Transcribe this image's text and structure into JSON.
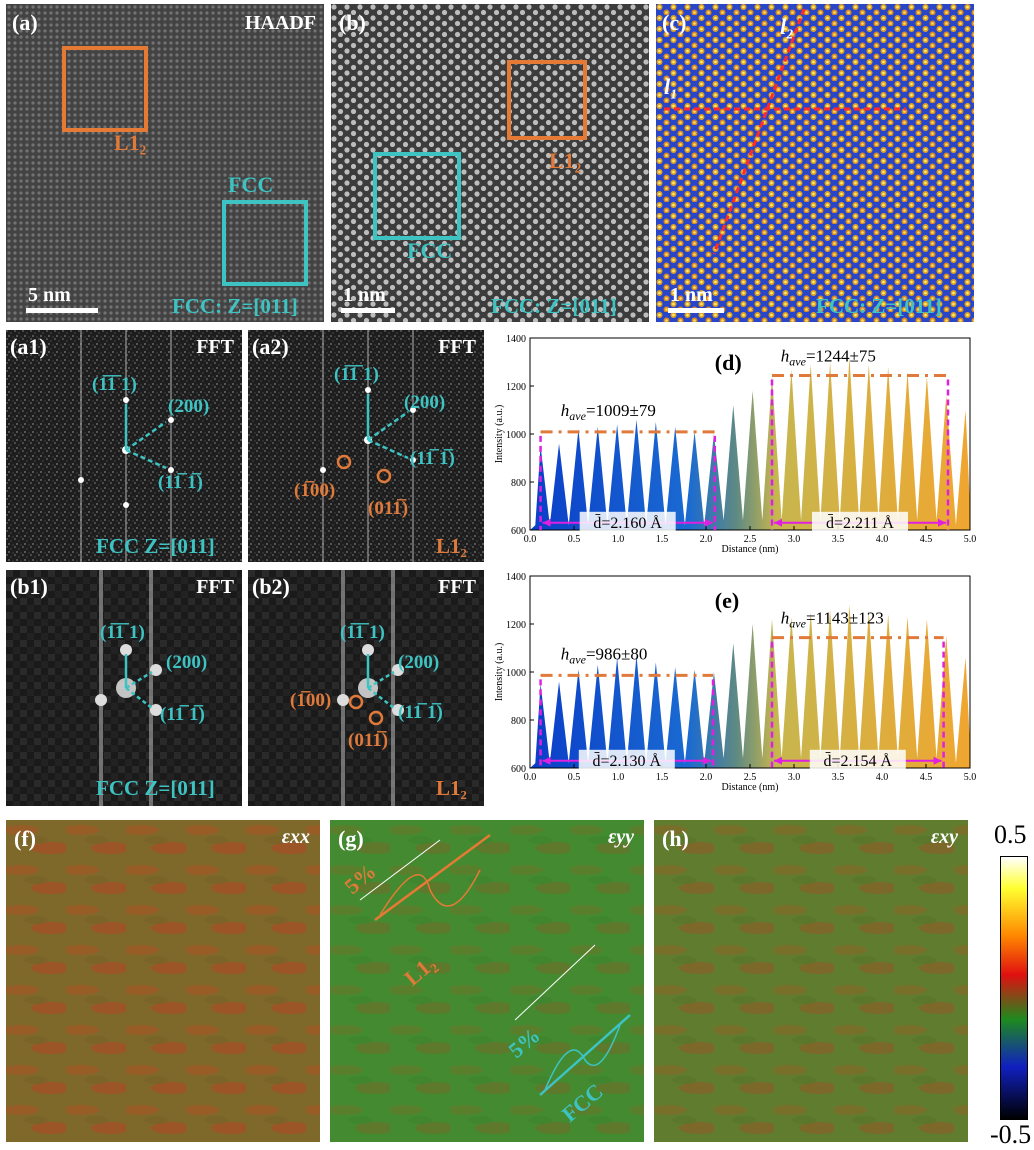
{
  "panels": {
    "a": {
      "label": "(a)",
      "mode": "HAADF",
      "scale": "5 nm",
      "box1": "L1₂",
      "box2": "FCC",
      "zone": "FCC: Z=[011]"
    },
    "b": {
      "label": "(b)",
      "scale": "1 nm",
      "box1": "L1₂",
      "box2": "FCC",
      "zone": "FCC: Z=[011]"
    },
    "c": {
      "label": "(c)",
      "scale": "1 nm",
      "zone": "FCC: Z=[011]",
      "line1": "l₁",
      "line2": "l₂"
    },
    "a1": {
      "label": "(a1)",
      "mode": "FFT",
      "p1": "(1̅1̅ 1)",
      "p2": "(200)",
      "p3": "(11̅ 1̅)",
      "zone": "FCC Z=[011]"
    },
    "a2": {
      "label": "(a2)",
      "mode": "FFT",
      "p1": "(1̅1̅ 1)",
      "p2": "(200)",
      "p3": "(11̅ 1̅)",
      "p4": "(1̅00)",
      "p5": "(011̅)",
      "phase": "L1₂"
    },
    "b1": {
      "label": "(b1)",
      "mode": "FFT",
      "p1": "(1̅1̅ 1)",
      "p2": "(200)",
      "p3": "(11̅ 1̅)",
      "zone": "FCC Z=[011]"
    },
    "b2": {
      "label": "(b2)",
      "mode": "FFT",
      "p1": "(1̅1̅ 1)",
      "p2": "(200)",
      "p3": "(11̅ 1̅)",
      "p4": "(1̅00)",
      "p5": "(011̅)",
      "phase": "L1₂"
    },
    "f": {
      "label": "(f)",
      "strain": "εxx"
    },
    "g": {
      "label": "(g)",
      "strain": "εyy",
      "pct1": "5%",
      "pct2": "5%",
      "phase1": "L1₂",
      "phase2": "FCC"
    },
    "h": {
      "label": "(h)",
      "strain": "εxy"
    }
  },
  "colorbar": {
    "max": "0.5",
    "min": "-0.5"
  },
  "chart_data": [
    {
      "type": "area",
      "panel": "(d)",
      "xlabel": "Distance (nm)",
      "ylabel": "Intensity (a.u.)",
      "xlim": [
        0,
        5.0
      ],
      "ylim": [
        600,
        1400
      ],
      "xticks": [
        "0.0",
        "0.5",
        "1.0",
        "1.5",
        "2.0",
        "2.5",
        "3.0",
        "3.5",
        "4.0",
        "4.5",
        "5.0"
      ],
      "yticks": [
        "600",
        "800",
        "1000",
        "1200",
        "1400"
      ],
      "annotations": {
        "h1": "h",
        "h1_sub": "ave",
        "h1_val": "=1009±79",
        "h2": "h",
        "h2_sub": "ave",
        "h2_val": "=1244±75",
        "d1": "d̄=2.160 Å",
        "d2": "d̄=2.211 Å"
      },
      "h_left": 1009,
      "h_right": 1244,
      "region_left": [
        0.12,
        2.1
      ],
      "region_right": [
        2.75,
        4.75
      ],
      "peaks_x": [
        0.12,
        0.33,
        0.55,
        0.77,
        0.99,
        1.21,
        1.43,
        1.65,
        1.87,
        2.09,
        2.31,
        2.53,
        2.75,
        2.97,
        3.19,
        3.41,
        3.63,
        3.85,
        4.07,
        4.29,
        4.51,
        4.73,
        4.95
      ],
      "peaks_y": [
        950,
        960,
        1020,
        1030,
        1040,
        1060,
        1050,
        1030,
        1010,
        1000,
        1120,
        1180,
        1240,
        1270,
        1290,
        1300,
        1320,
        1290,
        1280,
        1260,
        1240,
        1160,
        1100
      ]
    },
    {
      "type": "area",
      "panel": "(e)",
      "xlabel": "Distance (nm)",
      "ylabel": "Intensity (a.u.)",
      "xlim": [
        0,
        5.0
      ],
      "ylim": [
        600,
        1400
      ],
      "xticks": [
        "0.0",
        "0.5",
        "1.0",
        "1.5",
        "2.0",
        "2.5",
        "3.0",
        "3.5",
        "4.0",
        "4.5",
        "5.0"
      ],
      "yticks": [
        "600",
        "800",
        "1000",
        "1200",
        "1400"
      ],
      "annotations": {
        "h1": "h",
        "h1_sub": "ave",
        "h1_val": "=986±80",
        "h2": "h",
        "h2_sub": "ave",
        "h2_val": "=1143±123",
        "d1": "d̄=2.130 Å",
        "d2": "d̄=2.154 Å"
      },
      "h_left": 986,
      "h_right": 1143,
      "region_left": [
        0.12,
        2.08
      ],
      "region_right": [
        2.75,
        4.7
      ],
      "peaks_x": [
        0.12,
        0.33,
        0.55,
        0.77,
        0.99,
        1.21,
        1.43,
        1.65,
        1.87,
        2.09,
        2.31,
        2.53,
        2.75,
        2.97,
        3.19,
        3.41,
        3.63,
        3.85,
        4.07,
        4.29,
        4.51,
        4.73,
        4.95
      ],
      "peaks_y": [
        950,
        960,
        1010,
        1030,
        1060,
        1070,
        1040,
        1020,
        1010,
        1000,
        1120,
        1200,
        1220,
        1230,
        1250,
        1260,
        1280,
        1250,
        1240,
        1230,
        1220,
        1150,
        1060
      ]
    }
  ]
}
